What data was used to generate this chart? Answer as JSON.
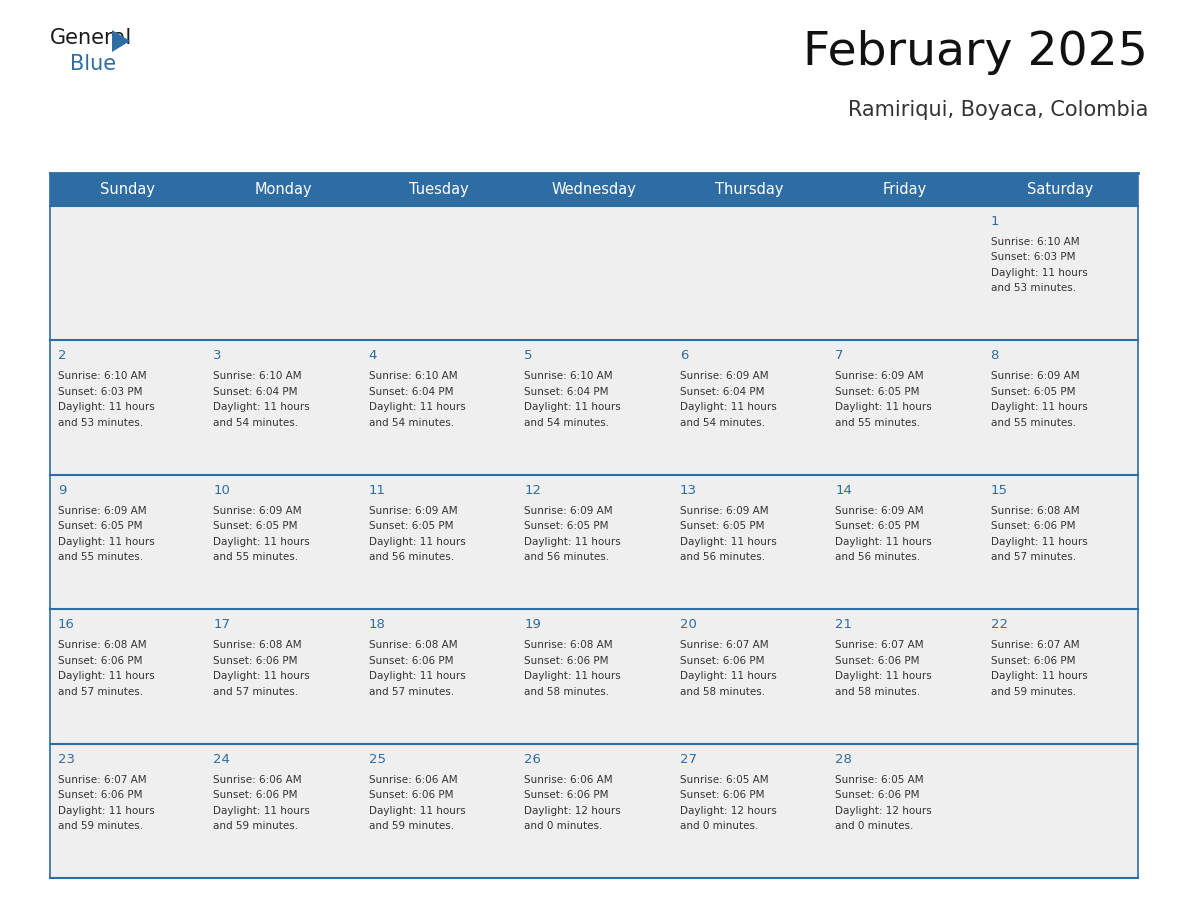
{
  "title": "February 2025",
  "subtitle": "Ramiriqui, Boyaca, Colombia",
  "header_bg": "#2E6DA4",
  "header_text_color": "#FFFFFF",
  "cell_bg_light": "#EFEFEF",
  "cell_bg_white": "#FFFFFF",
  "day_number_color": "#2E6DA4",
  "text_color": "#333333",
  "line_color": "#2E6DA4",
  "days_of_week": [
    "Sunday",
    "Monday",
    "Tuesday",
    "Wednesday",
    "Thursday",
    "Friday",
    "Saturday"
  ],
  "logo_color1": "#1a1a1a",
  "logo_color2": "#2E6DA4",
  "calendar": [
    [
      {
        "day": "",
        "lines": []
      },
      {
        "day": "",
        "lines": []
      },
      {
        "day": "",
        "lines": []
      },
      {
        "day": "",
        "lines": []
      },
      {
        "day": "",
        "lines": []
      },
      {
        "day": "",
        "lines": []
      },
      {
        "day": "1",
        "lines": [
          "Sunrise: 6:10 AM",
          "Sunset: 6:03 PM",
          "Daylight: 11 hours",
          "and 53 minutes."
        ]
      }
    ],
    [
      {
        "day": "2",
        "lines": [
          "Sunrise: 6:10 AM",
          "Sunset: 6:03 PM",
          "Daylight: 11 hours",
          "and 53 minutes."
        ]
      },
      {
        "day": "3",
        "lines": [
          "Sunrise: 6:10 AM",
          "Sunset: 6:04 PM",
          "Daylight: 11 hours",
          "and 54 minutes."
        ]
      },
      {
        "day": "4",
        "lines": [
          "Sunrise: 6:10 AM",
          "Sunset: 6:04 PM",
          "Daylight: 11 hours",
          "and 54 minutes."
        ]
      },
      {
        "day": "5",
        "lines": [
          "Sunrise: 6:10 AM",
          "Sunset: 6:04 PM",
          "Daylight: 11 hours",
          "and 54 minutes."
        ]
      },
      {
        "day": "6",
        "lines": [
          "Sunrise: 6:09 AM",
          "Sunset: 6:04 PM",
          "Daylight: 11 hours",
          "and 54 minutes."
        ]
      },
      {
        "day": "7",
        "lines": [
          "Sunrise: 6:09 AM",
          "Sunset: 6:05 PM",
          "Daylight: 11 hours",
          "and 55 minutes."
        ]
      },
      {
        "day": "8",
        "lines": [
          "Sunrise: 6:09 AM",
          "Sunset: 6:05 PM",
          "Daylight: 11 hours",
          "and 55 minutes."
        ]
      }
    ],
    [
      {
        "day": "9",
        "lines": [
          "Sunrise: 6:09 AM",
          "Sunset: 6:05 PM",
          "Daylight: 11 hours",
          "and 55 minutes."
        ]
      },
      {
        "day": "10",
        "lines": [
          "Sunrise: 6:09 AM",
          "Sunset: 6:05 PM",
          "Daylight: 11 hours",
          "and 55 minutes."
        ]
      },
      {
        "day": "11",
        "lines": [
          "Sunrise: 6:09 AM",
          "Sunset: 6:05 PM",
          "Daylight: 11 hours",
          "and 56 minutes."
        ]
      },
      {
        "day": "12",
        "lines": [
          "Sunrise: 6:09 AM",
          "Sunset: 6:05 PM",
          "Daylight: 11 hours",
          "and 56 minutes."
        ]
      },
      {
        "day": "13",
        "lines": [
          "Sunrise: 6:09 AM",
          "Sunset: 6:05 PM",
          "Daylight: 11 hours",
          "and 56 minutes."
        ]
      },
      {
        "day": "14",
        "lines": [
          "Sunrise: 6:09 AM",
          "Sunset: 6:05 PM",
          "Daylight: 11 hours",
          "and 56 minutes."
        ]
      },
      {
        "day": "15",
        "lines": [
          "Sunrise: 6:08 AM",
          "Sunset: 6:06 PM",
          "Daylight: 11 hours",
          "and 57 minutes."
        ]
      }
    ],
    [
      {
        "day": "16",
        "lines": [
          "Sunrise: 6:08 AM",
          "Sunset: 6:06 PM",
          "Daylight: 11 hours",
          "and 57 minutes."
        ]
      },
      {
        "day": "17",
        "lines": [
          "Sunrise: 6:08 AM",
          "Sunset: 6:06 PM",
          "Daylight: 11 hours",
          "and 57 minutes."
        ]
      },
      {
        "day": "18",
        "lines": [
          "Sunrise: 6:08 AM",
          "Sunset: 6:06 PM",
          "Daylight: 11 hours",
          "and 57 minutes."
        ]
      },
      {
        "day": "19",
        "lines": [
          "Sunrise: 6:08 AM",
          "Sunset: 6:06 PM",
          "Daylight: 11 hours",
          "and 58 minutes."
        ]
      },
      {
        "day": "20",
        "lines": [
          "Sunrise: 6:07 AM",
          "Sunset: 6:06 PM",
          "Daylight: 11 hours",
          "and 58 minutes."
        ]
      },
      {
        "day": "21",
        "lines": [
          "Sunrise: 6:07 AM",
          "Sunset: 6:06 PM",
          "Daylight: 11 hours",
          "and 58 minutes."
        ]
      },
      {
        "day": "22",
        "lines": [
          "Sunrise: 6:07 AM",
          "Sunset: 6:06 PM",
          "Daylight: 11 hours",
          "and 59 minutes."
        ]
      }
    ],
    [
      {
        "day": "23",
        "lines": [
          "Sunrise: 6:07 AM",
          "Sunset: 6:06 PM",
          "Daylight: 11 hours",
          "and 59 minutes."
        ]
      },
      {
        "day": "24",
        "lines": [
          "Sunrise: 6:06 AM",
          "Sunset: 6:06 PM",
          "Daylight: 11 hours",
          "and 59 minutes."
        ]
      },
      {
        "day": "25",
        "lines": [
          "Sunrise: 6:06 AM",
          "Sunset: 6:06 PM",
          "Daylight: 11 hours",
          "and 59 minutes."
        ]
      },
      {
        "day": "26",
        "lines": [
          "Sunrise: 6:06 AM",
          "Sunset: 6:06 PM",
          "Daylight: 12 hours",
          "and 0 minutes."
        ]
      },
      {
        "day": "27",
        "lines": [
          "Sunrise: 6:05 AM",
          "Sunset: 6:06 PM",
          "Daylight: 12 hours",
          "and 0 minutes."
        ]
      },
      {
        "day": "28",
        "lines": [
          "Sunrise: 6:05 AM",
          "Sunset: 6:06 PM",
          "Daylight: 12 hours",
          "and 0 minutes."
        ]
      },
      {
        "day": "",
        "lines": []
      }
    ]
  ]
}
